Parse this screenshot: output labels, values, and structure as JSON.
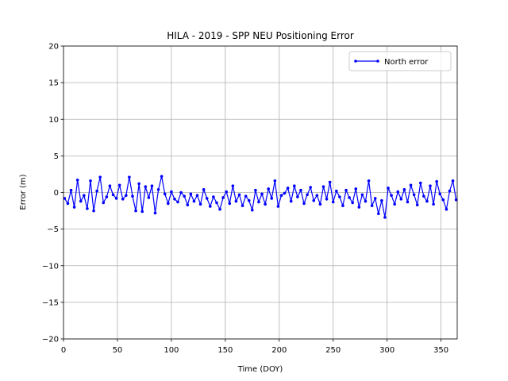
{
  "chart_data": {
    "type": "line",
    "title": "HILA - 2019 - SPP NEU Positioning Error",
    "xlabel": "Time (DOY)",
    "ylabel": "Error (m)",
    "x": [
      1,
      4,
      7,
      10,
      13,
      16,
      19,
      22,
      25,
      28,
      31,
      34,
      37,
      40,
      43,
      46,
      49,
      52,
      55,
      58,
      61,
      64,
      67,
      70,
      73,
      76,
      79,
      82,
      85,
      88,
      91,
      94,
      97,
      100,
      103,
      106,
      109,
      112,
      115,
      118,
      121,
      124,
      127,
      130,
      133,
      136,
      139,
      142,
      145,
      148,
      151,
      154,
      157,
      160,
      163,
      166,
      169,
      172,
      175,
      178,
      181,
      184,
      187,
      190,
      193,
      196,
      199,
      202,
      205,
      208,
      211,
      214,
      217,
      220,
      223,
      226,
      229,
      232,
      235,
      238,
      241,
      244,
      247,
      250,
      253,
      256,
      259,
      262,
      265,
      268,
      271,
      274,
      277,
      280,
      283,
      286,
      289,
      292,
      295,
      298,
      301,
      304,
      307,
      310,
      313,
      316,
      319,
      322,
      325,
      328,
      331,
      334,
      337,
      340,
      343,
      346,
      349,
      352,
      355,
      358,
      361,
      364
    ],
    "series": [
      {
        "name": "North error",
        "color": "#0000ff",
        "values": [
          -0.8,
          -1.5,
          0.3,
          -2.0,
          1.7,
          -1.2,
          -0.4,
          -2.2,
          1.6,
          -2.5,
          0.2,
          2.1,
          -1.4,
          -0.6,
          0.9,
          -0.3,
          -0.8,
          1.0,
          -0.9,
          -0.4,
          2.1,
          -0.5,
          -2.5,
          1.2,
          -2.6,
          0.8,
          -0.7,
          0.9,
          -2.8,
          0.4,
          2.2,
          -0.2,
          -1.5,
          0.1,
          -0.9,
          -1.3,
          0.0,
          -0.5,
          -1.7,
          -0.2,
          -1.2,
          -0.4,
          -1.6,
          0.4,
          -0.8,
          -1.9,
          -0.6,
          -1.4,
          -2.3,
          -0.7,
          0.1,
          -1.5,
          0.9,
          -1.2,
          -0.3,
          -1.8,
          -0.5,
          -1.1,
          -2.4,
          0.3,
          -1.3,
          -0.2,
          -1.6,
          0.5,
          -0.8,
          1.6,
          -1.9,
          -0.4,
          -0.1,
          0.6,
          -1.2,
          0.9,
          -0.6,
          0.3,
          -1.5,
          -0.3,
          0.7,
          -1.1,
          -0.4,
          -1.6,
          0.8,
          -0.9,
          1.4,
          -1.3,
          0.2,
          -0.6,
          -1.8,
          0.3,
          -0.7,
          -1.4,
          0.5,
          -2.0,
          -0.3,
          -1.2,
          1.6,
          -1.8,
          -0.8,
          -2.9,
          -1.1,
          -3.4,
          0.6,
          -0.4,
          -1.6,
          0.1,
          -0.9,
          0.4,
          -1.3,
          1.0,
          -0.3,
          -1.7,
          1.3,
          -0.5,
          -1.2,
          0.9,
          -1.6,
          1.5,
          -0.2,
          -1.0,
          -2.3,
          0.2,
          1.6,
          -1.0
        ]
      }
    ],
    "xlim": [
      0,
      365
    ],
    "xticks": [
      0,
      50,
      100,
      150,
      200,
      250,
      300,
      350
    ],
    "ylim": [
      -20,
      20
    ],
    "yticks": [
      {
        "value": -20,
        "label": "−20"
      },
      {
        "value": -15,
        "label": "−15"
      },
      {
        "value": -10,
        "label": "−10"
      },
      {
        "value": -5,
        "label": "−5"
      },
      0,
      5,
      10,
      15,
      20
    ],
    "grid": true,
    "legend": "upper right"
  }
}
